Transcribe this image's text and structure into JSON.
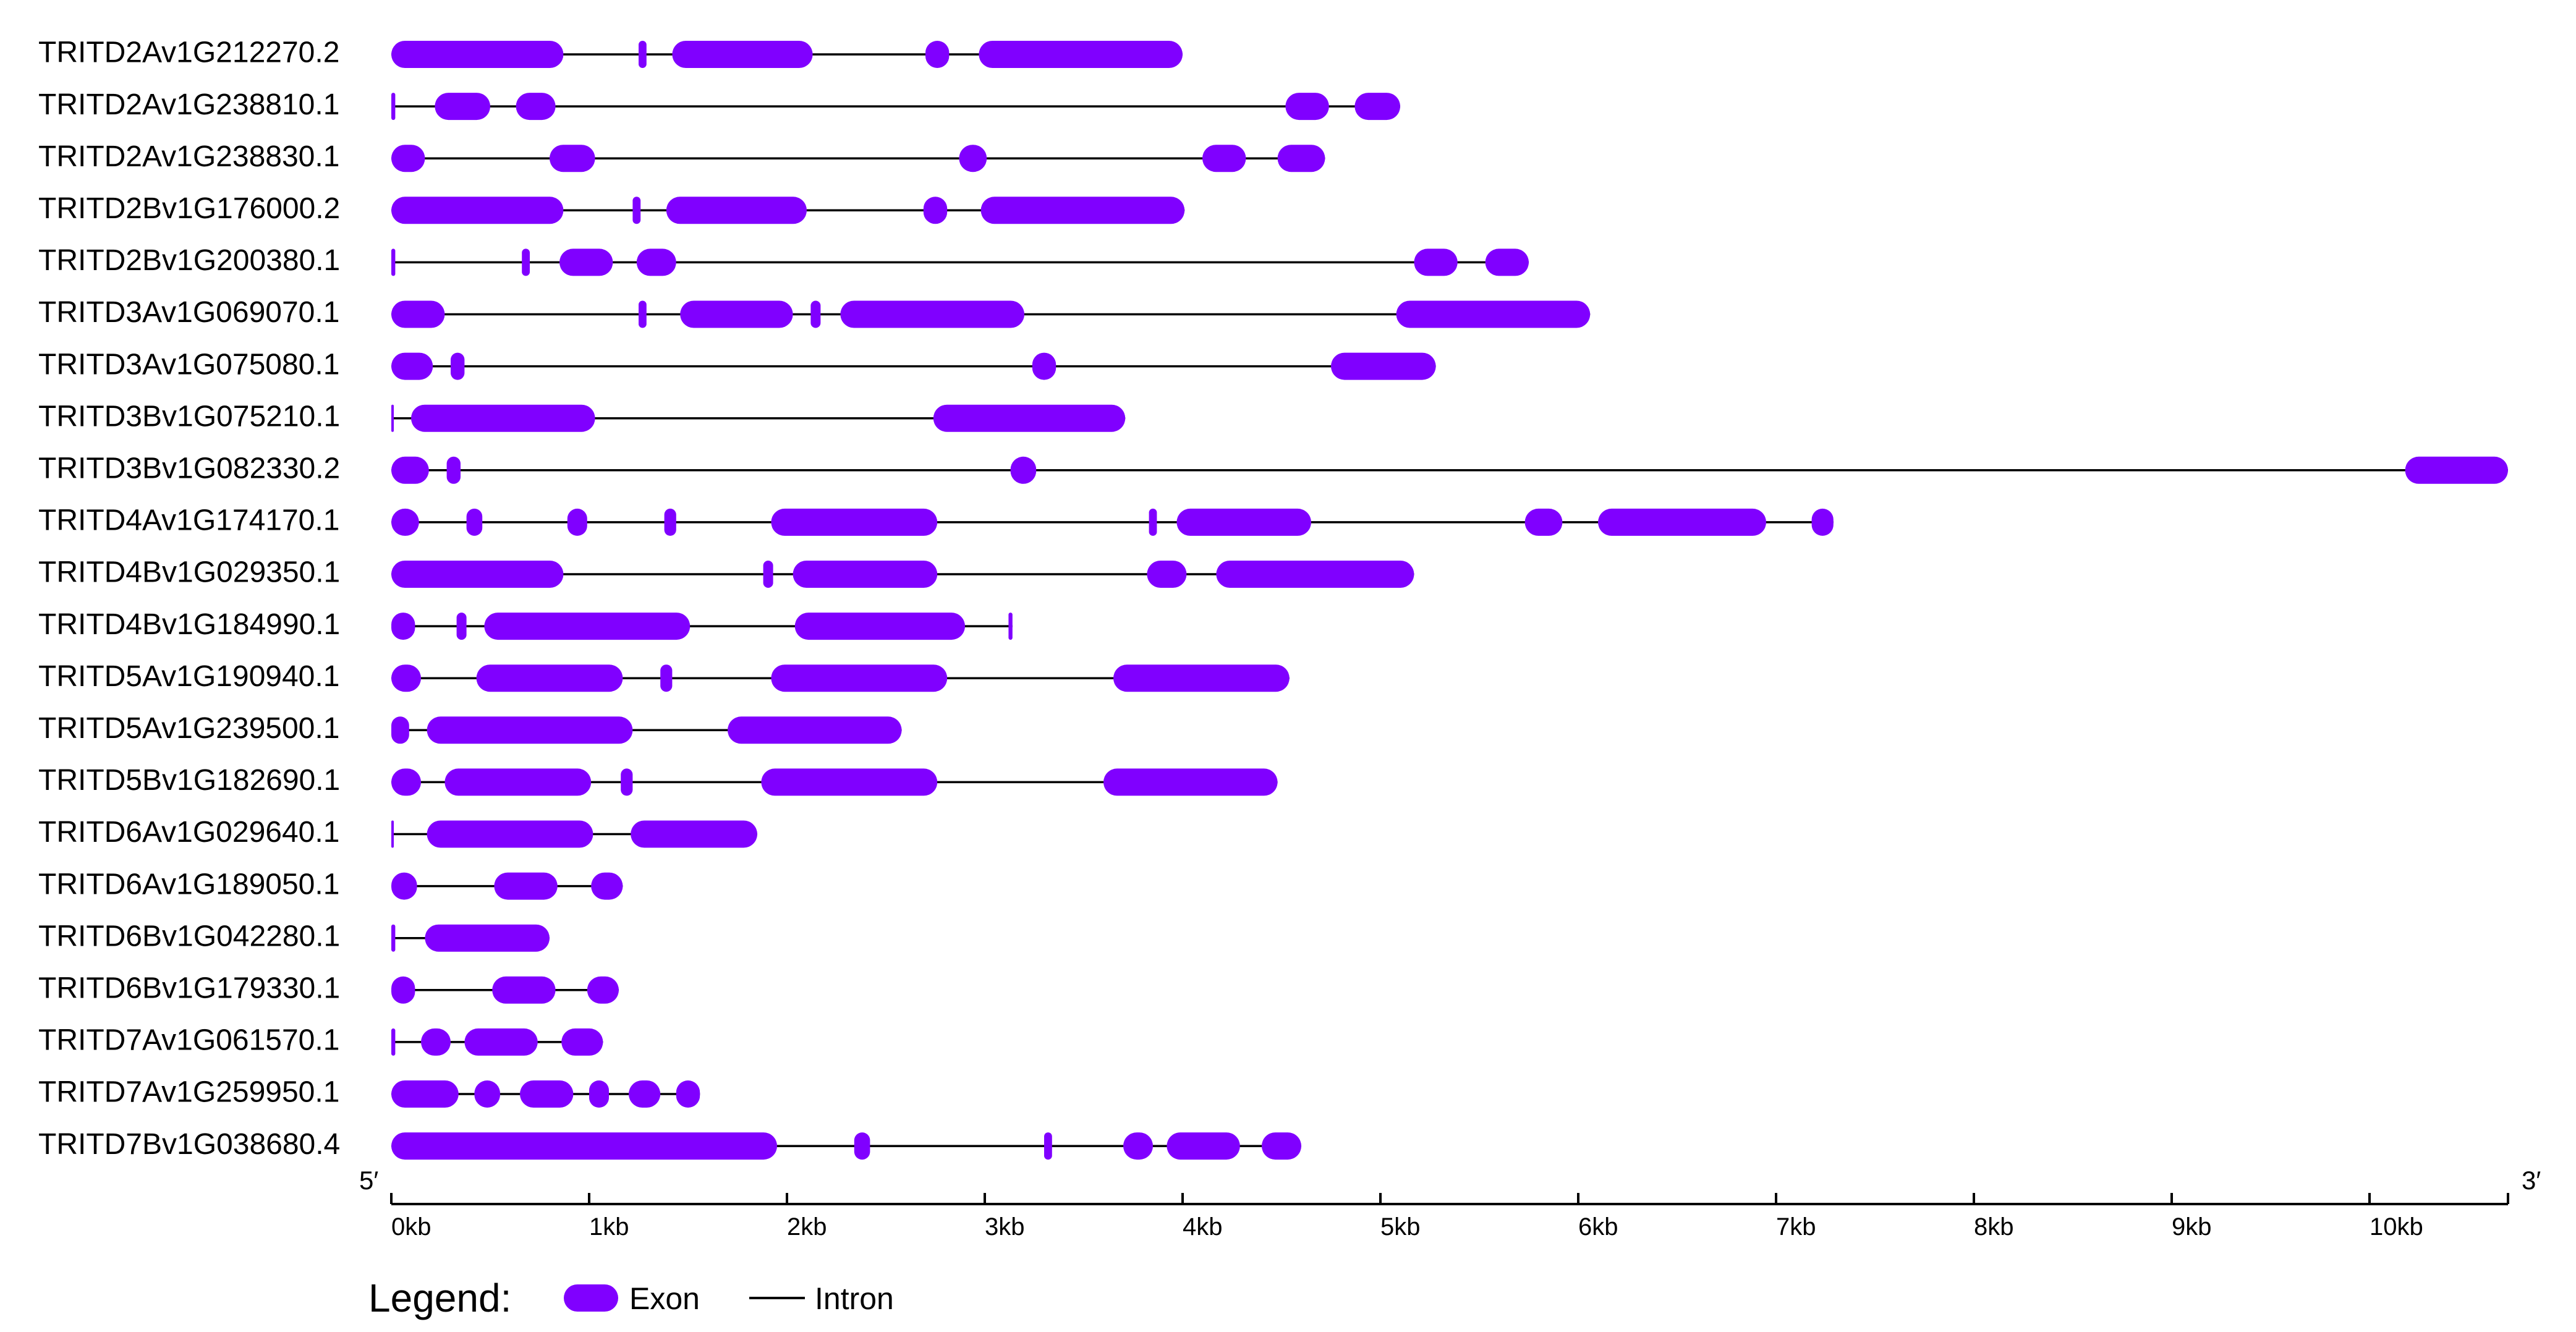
{
  "chart_data": {
    "type": "gene-structure",
    "x_unit": "kb",
    "xlim": [
      0,
      10.7
    ],
    "axis": {
      "ticks": [
        0,
        1,
        2,
        3,
        4,
        5,
        6,
        7,
        8,
        9,
        10
      ],
      "tick_labels": [
        "0kb",
        "1kb",
        "2kb",
        "3kb",
        "4kb",
        "5kb",
        "6kb",
        "7kb",
        "8kb",
        "9kb",
        "10kb"
      ],
      "start_label": "5′",
      "end_label": "3′"
    },
    "colors": {
      "exon": "#8000ff",
      "intron": "#000000",
      "axis": "#000000"
    },
    "legend": {
      "title": "Legend:",
      "items": [
        {
          "label": "Exon",
          "kind": "exon"
        },
        {
          "label": "Intron",
          "kind": "intron"
        }
      ]
    },
    "genes": [
      {
        "name": "TRITD2Av1G212270.2",
        "span": [
          0,
          4.0
        ],
        "exons": [
          [
            0,
            0.87
          ],
          [
            1.25,
            1.29
          ],
          [
            1.42,
            2.13
          ],
          [
            2.7,
            2.82
          ],
          [
            2.97,
            4.0
          ]
        ]
      },
      {
        "name": "TRITD2Av1G238810.1",
        "span": [
          0,
          5.1
        ],
        "exons": [
          [
            0,
            0.02
          ],
          [
            0.22,
            0.5
          ],
          [
            0.63,
            0.83
          ],
          [
            4.52,
            4.74
          ],
          [
            4.87,
            5.1
          ]
        ]
      },
      {
        "name": "TRITD2Av1G238830.1",
        "span": [
          0,
          4.72
        ],
        "exons": [
          [
            0,
            0.17
          ],
          [
            0.8,
            1.03
          ],
          [
            2.87,
            3.01
          ],
          [
            4.1,
            4.32
          ],
          [
            4.48,
            4.72
          ]
        ]
      },
      {
        "name": "TRITD2Bv1G176000.2",
        "span": [
          0,
          4.01
        ],
        "exons": [
          [
            0,
            0.87
          ],
          [
            1.22,
            1.26
          ],
          [
            1.39,
            2.1
          ],
          [
            2.69,
            2.81
          ],
          [
            2.98,
            4.01
          ]
        ]
      },
      {
        "name": "TRITD2Bv1G200380.1",
        "span": [
          0,
          5.75
        ],
        "exons": [
          [
            0,
            0.02
          ],
          [
            0.66,
            0.7
          ],
          [
            0.85,
            1.12
          ],
          [
            1.24,
            1.44
          ],
          [
            5.17,
            5.39
          ],
          [
            5.53,
            5.75
          ]
        ]
      },
      {
        "name": "TRITD3Av1G069070.1",
        "span": [
          0,
          6.06
        ],
        "exons": [
          [
            0,
            0.27
          ],
          [
            1.25,
            1.29
          ],
          [
            1.46,
            2.03
          ],
          [
            2.12,
            2.17
          ],
          [
            2.27,
            3.2
          ],
          [
            5.08,
            6.06
          ]
        ]
      },
      {
        "name": "TRITD3Av1G075080.1",
        "span": [
          0,
          5.28
        ],
        "exons": [
          [
            0,
            0.21
          ],
          [
            0.3,
            0.37
          ],
          [
            3.24,
            3.36
          ],
          [
            4.75,
            5.28
          ]
        ]
      },
      {
        "name": "TRITD3Bv1G075210.1",
        "span": [
          0,
          3.71
        ],
        "exons": [
          [
            0,
            0.01
          ],
          [
            0.1,
            1.03
          ],
          [
            2.74,
            3.71
          ]
        ]
      },
      {
        "name": "TRITD3Bv1G082330.2",
        "span": [
          0,
          10.7
        ],
        "exons": [
          [
            0,
            0.19
          ],
          [
            0.28,
            0.35
          ],
          [
            3.13,
            3.26
          ],
          [
            10.18,
            10.7
          ]
        ]
      },
      {
        "name": "TRITD4Av1G174170.1",
        "span": [
          0,
          7.29
        ],
        "exons": [
          [
            0,
            0.14
          ],
          [
            0.38,
            0.46
          ],
          [
            0.89,
            0.99
          ],
          [
            1.38,
            1.44
          ],
          [
            1.92,
            2.76
          ],
          [
            3.83,
            3.87
          ],
          [
            3.97,
            4.65
          ],
          [
            5.73,
            5.92
          ],
          [
            6.1,
            6.95
          ],
          [
            7.18,
            7.29
          ]
        ]
      },
      {
        "name": "TRITD4Bv1G029350.1",
        "span": [
          0,
          5.17
        ],
        "exons": [
          [
            0,
            0.87
          ],
          [
            1.88,
            1.93
          ],
          [
            2.03,
            2.76
          ],
          [
            3.82,
            4.02
          ],
          [
            4.17,
            5.17
          ]
        ]
      },
      {
        "name": "TRITD4Bv1G184990.1",
        "span": [
          0,
          3.14
        ],
        "exons": [
          [
            0,
            0.12
          ],
          [
            0.33,
            0.38
          ],
          [
            0.47,
            1.51
          ],
          [
            2.04,
            2.9
          ],
          [
            3.12,
            3.14
          ]
        ]
      },
      {
        "name": "TRITD5Av1G190940.1",
        "span": [
          0,
          4.54
        ],
        "exons": [
          [
            0,
            0.15
          ],
          [
            0.43,
            1.17
          ],
          [
            1.36,
            1.42
          ],
          [
            1.92,
            2.81
          ],
          [
            3.65,
            4.54
          ]
        ]
      },
      {
        "name": "TRITD5Av1G239500.1",
        "span": [
          0,
          2.58
        ],
        "exons": [
          [
            0,
            0.09
          ],
          [
            0.18,
            1.22
          ],
          [
            1.7,
            2.58
          ]
        ]
      },
      {
        "name": "TRITD5Bv1G182690.1",
        "span": [
          0,
          4.48
        ],
        "exons": [
          [
            0,
            0.15
          ],
          [
            0.27,
            1.01
          ],
          [
            1.16,
            1.22
          ],
          [
            1.87,
            2.76
          ],
          [
            3.6,
            4.48
          ]
        ]
      },
      {
        "name": "TRITD6Av1G029640.1",
        "span": [
          0,
          1.85
        ],
        "exons": [
          [
            0,
            0.01
          ],
          [
            0.18,
            1.02
          ],
          [
            1.21,
            1.85
          ]
        ]
      },
      {
        "name": "TRITD6Av1G189050.1",
        "span": [
          0,
          1.17
        ],
        "exons": [
          [
            0,
            0.13
          ],
          [
            0.52,
            0.84
          ],
          [
            1.01,
            1.17
          ]
        ]
      },
      {
        "name": "TRITD6Bv1G042280.1",
        "span": [
          0,
          0.8
        ],
        "exons": [
          [
            0,
            0.02
          ],
          [
            0.17,
            0.8
          ]
        ]
      },
      {
        "name": "TRITD6Bv1G179330.1",
        "span": [
          0,
          1.15
        ],
        "exons": [
          [
            0,
            0.12
          ],
          [
            0.51,
            0.83
          ],
          [
            0.99,
            1.15
          ]
        ]
      },
      {
        "name": "TRITD7Av1G061570.1",
        "span": [
          0,
          1.07
        ],
        "exons": [
          [
            0,
            0.02
          ],
          [
            0.15,
            0.3
          ],
          [
            0.37,
            0.74
          ],
          [
            0.86,
            1.07
          ]
        ]
      },
      {
        "name": "TRITD7Av1G259950.1",
        "span": [
          0,
          1.56
        ],
        "exons": [
          [
            0,
            0.34
          ],
          [
            0.42,
            0.55
          ],
          [
            0.65,
            0.92
          ],
          [
            1.0,
            1.1
          ],
          [
            1.2,
            1.36
          ],
          [
            1.44,
            1.56
          ]
        ]
      },
      {
        "name": "TRITD7Bv1G038680.4",
        "span": [
          0,
          4.6
        ],
        "exons": [
          [
            0,
            1.95
          ],
          [
            2.34,
            2.42
          ],
          [
            3.3,
            3.34
          ],
          [
            3.7,
            3.85
          ],
          [
            3.92,
            4.29
          ],
          [
            4.4,
            4.6
          ]
        ]
      }
    ]
  }
}
